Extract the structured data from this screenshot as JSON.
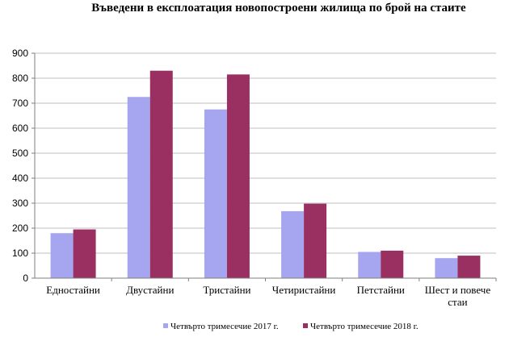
{
  "chart_data": {
    "type": "bar",
    "title": "Въведени в експлоатация новопостроени жилища по брой на стаите",
    "categories": [
      [
        "Едностайни"
      ],
      [
        "Двустайни"
      ],
      [
        "Тристайни"
      ],
      [
        "Четиристайни"
      ],
      [
        "Петстайни"
      ],
      [
        "Шест и повече",
        "стаи"
      ]
    ],
    "series": [
      {
        "name": "Четвърто тримесечие 2017 г.",
        "color": "#a5a5f0",
        "values": [
          180,
          725,
          675,
          268,
          105,
          80
        ]
      },
      {
        "name": "Четвърто тримесечие 2018 г.",
        "color": "#993061",
        "values": [
          195,
          830,
          815,
          298,
          110,
          90
        ]
      }
    ],
    "ylim": [
      0,
      900
    ],
    "yticks": [
      0,
      100,
      200,
      300,
      400,
      500,
      600,
      700,
      800,
      900
    ],
    "grid": true,
    "legend": "bottom"
  }
}
